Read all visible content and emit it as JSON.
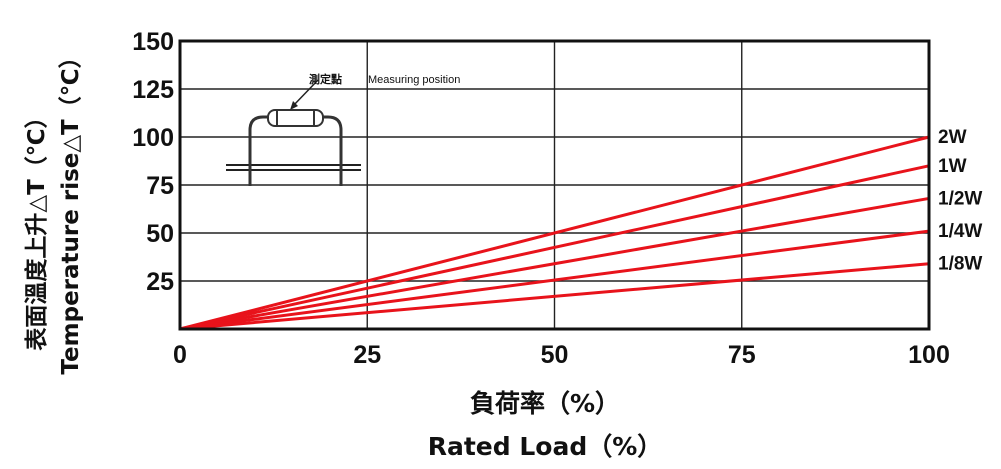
{
  "chart_data": {
    "type": "line",
    "x": [
      0,
      100
    ],
    "xlim": [
      0,
      100
    ],
    "ylim": [
      0,
      150
    ],
    "x_ticks": [
      "0",
      "25",
      "50",
      "75",
      "100"
    ],
    "y_ticks": [
      "25",
      "50",
      "75",
      "100",
      "125",
      "150"
    ],
    "xlabel_cn": "負荷率（%）",
    "xlabel_en": "Rated Load（%）",
    "ylabel_cn": "表面溫度上升△T（℃）",
    "ylabel_en": "Temperature rise△T（℃）",
    "grid": true,
    "series": [
      {
        "name": "2W",
        "values": [
          0,
          100
        ]
      },
      {
        "name": "1W",
        "values": [
          0,
          85
        ]
      },
      {
        "name": "1/2W",
        "values": [
          0,
          68
        ]
      },
      {
        "name": "1/4W",
        "values": [
          0,
          51
        ]
      },
      {
        "name": "1/8W",
        "values": [
          0,
          34
        ]
      }
    ],
    "line_color": "#e8131b",
    "inset": {
      "label_cn": "測定點",
      "label_en": "Measuring position"
    }
  }
}
